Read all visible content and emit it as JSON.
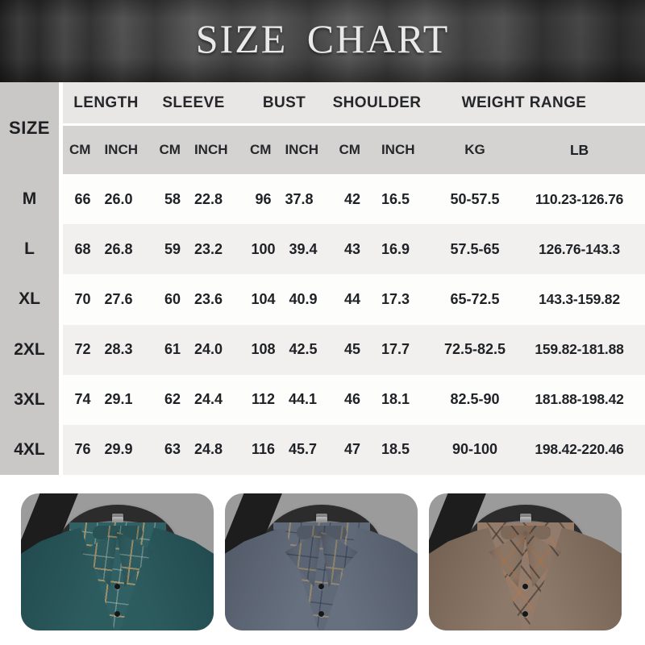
{
  "title": "SIZE CHART",
  "table": {
    "size_label": "SIZE",
    "groups": [
      {
        "label": "LENGTH",
        "units": [
          "CM",
          "INCH"
        ]
      },
      {
        "label": "SLEEVE",
        "units": [
          "CM",
          "INCH"
        ]
      },
      {
        "label": "BUST",
        "units": [
          "CM",
          "INCH"
        ]
      },
      {
        "label": "SHOULDER",
        "units": [
          "CM",
          "INCH"
        ]
      },
      {
        "label": "WEIGHT RANGE",
        "units": [
          "KG",
          "LB"
        ]
      }
    ],
    "rows": [
      {
        "size": "M",
        "length": [
          "66",
          "26.0"
        ],
        "sleeve": [
          "58",
          "22.8"
        ],
        "bust": [
          "96",
          "37.8"
        ],
        "shoulder": [
          "42",
          "16.5"
        ],
        "kg": "50-57.5",
        "lb": "110.23-126.76"
      },
      {
        "size": "L",
        "length": [
          "68",
          "26.8"
        ],
        "sleeve": [
          "59",
          "23.2"
        ],
        "bust": [
          "100",
          "39.4"
        ],
        "shoulder": [
          "43",
          "16.9"
        ],
        "kg": "57.5-65",
        "lb": "126.76-143.3"
      },
      {
        "size": "XL",
        "length": [
          "70",
          "27.6"
        ],
        "sleeve": [
          "60",
          "23.6"
        ],
        "bust": [
          "104",
          "40.9"
        ],
        "shoulder": [
          "44",
          "17.3"
        ],
        "kg": "65-72.5",
        "lb": "143.3-159.82"
      },
      {
        "size": "2XL",
        "length": [
          "72",
          "28.3"
        ],
        "sleeve": [
          "61",
          "24.0"
        ],
        "bust": [
          "108",
          "42.5"
        ],
        "shoulder": [
          "45",
          "17.7"
        ],
        "kg": "72.5-82.5",
        "lb": "159.82-181.88"
      },
      {
        "size": "3XL",
        "length": [
          "74",
          "29.1"
        ],
        "sleeve": [
          "62",
          "24.4"
        ],
        "bust": [
          "112",
          "44.1"
        ],
        "shoulder": [
          "46",
          "18.1"
        ],
        "kg": "82.5-90",
        "lb": "181.88-198.42"
      },
      {
        "size": "4XL",
        "length": [
          "76",
          "29.9"
        ],
        "sleeve": [
          "63",
          "24.8"
        ],
        "bust": [
          "116",
          "45.7"
        ],
        "shoulder": [
          "47",
          "18.5"
        ],
        "kg": "90-100",
        "lb": "198.42-220.46"
      }
    ]
  },
  "products": [
    {
      "name": "teal green plaid-collar sweater",
      "palette": {
        "sw": "#2d5c5f",
        "swDark": "#1f474b",
        "shirt": "#306064",
        "plaidA": "rgba(187,156,106,0.8)",
        "plaidB": "rgba(215,219,205,0.38)",
        "pa1": "97deg",
        "pa2": "7deg"
      }
    },
    {
      "name": "blue gray plaid-collar sweater",
      "palette": {
        "sw": "#67707f",
        "swDark": "#4e5664",
        "shirt": "#606978",
        "plaidA": "rgba(164,146,108,0.75)",
        "plaidB": "rgba(35,45,75,0.45)",
        "pa1": "97deg",
        "pa2": "7deg"
      }
    },
    {
      "name": "brown khaki plaid-collar sweater",
      "palette": {
        "sw": "#8d7969",
        "swDark": "#6e5c4d",
        "shirt": "#927b6a",
        "plaidA": "rgba(55,50,46,0.6)",
        "plaidB": "rgba(196,117,60,0.5)",
        "pa1": "52deg",
        "pa2": "-52deg"
      }
    }
  ],
  "colors": {
    "curtain_base": "#3c3c3c",
    "size_column_bg": "#c9c8c6",
    "header_row_bg": "#e8e7e5",
    "units_row_bg": "#d4d3d1",
    "row_alt_bg": "#f1f0ee",
    "photo_backdrop": "#9b9b9b"
  }
}
